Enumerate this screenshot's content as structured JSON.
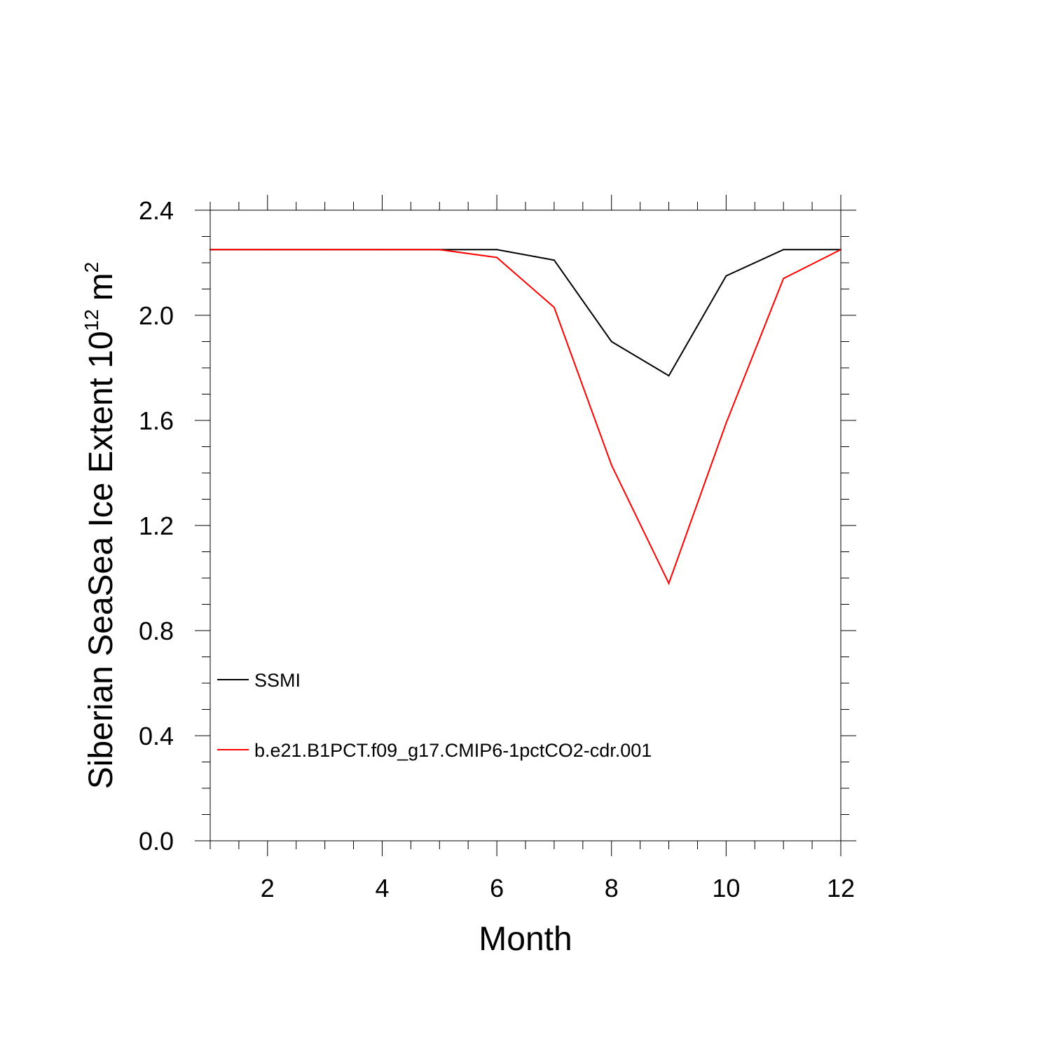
{
  "chart_data": {
    "type": "line",
    "title": "",
    "xlabel": "Month",
    "ylabel": {
      "main": "Siberian SeaSea Ice Extent 10",
      "exponent": "12",
      "unit": "m",
      "unit_exponent": "2"
    },
    "xlim": [
      1,
      12
    ],
    "ylim": [
      0.0,
      2.4
    ],
    "xticks": [
      2,
      4,
      6,
      8,
      10,
      12
    ],
    "xtick_labels": [
      "2",
      "4",
      "6",
      "8",
      "10",
      "12"
    ],
    "yticks": [
      0.0,
      0.4,
      0.8,
      1.2,
      1.6,
      2.0,
      2.4
    ],
    "ytick_labels": [
      "0.0",
      "0.4",
      "0.8",
      "1.2",
      "1.6",
      "2.0",
      "2.4"
    ],
    "x_minor_step": 0.5,
    "y_minor_step": 0.1,
    "grid": false,
    "legend_position": "lower-left",
    "x": [
      1,
      2,
      3,
      4,
      5,
      6,
      7,
      8,
      9,
      10,
      11,
      12
    ],
    "series": [
      {
        "name": "SSMI",
        "color": "#000000",
        "values": [
          2.25,
          2.25,
          2.25,
          2.25,
          2.25,
          2.25,
          2.21,
          1.9,
          1.77,
          2.15,
          2.25,
          2.25
        ]
      },
      {
        "name": "b.e21.B1PCT.f09_g17.CMIP6-1pctCO2-cdr.001",
        "color": "#ff0000",
        "values": [
          2.25,
          2.25,
          2.25,
          2.25,
          2.25,
          2.22,
          2.03,
          1.43,
          0.98,
          1.59,
          2.14,
          2.25
        ]
      }
    ]
  }
}
